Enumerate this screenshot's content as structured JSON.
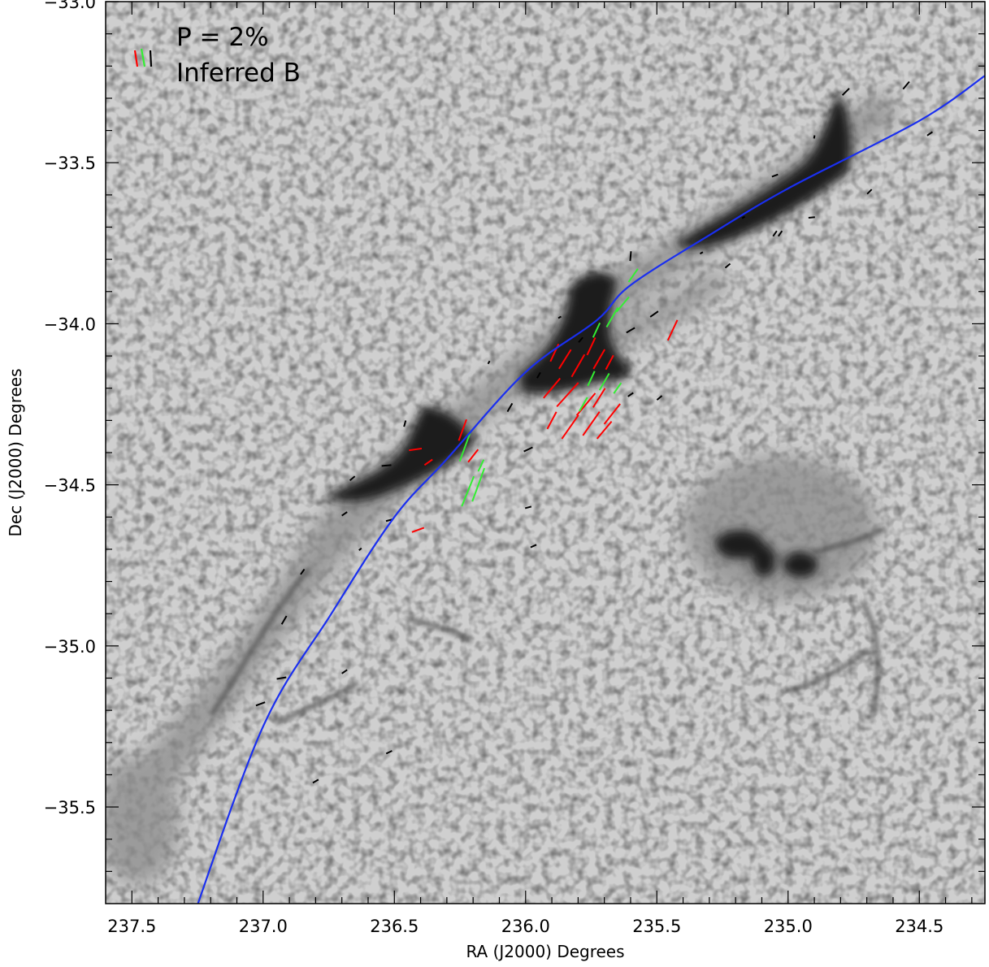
{
  "chart_data": {
    "type": "scatter",
    "title": "",
    "xlabel": "RA (J2000) Degrees",
    "ylabel": "Dec (J2000) Degrees",
    "xlim": [
      237.6,
      234.25
    ],
    "ylim": [
      -35.8,
      -33.0
    ],
    "x_reversed": true,
    "xticks": [
      237.5,
      237.0,
      236.5,
      236.0,
      235.5,
      235.0,
      234.5
    ],
    "xtick_labels": [
      "237.5",
      "237.0",
      "236.5",
      "236.0",
      "235.5",
      "235.0",
      "234.5"
    ],
    "yticks": [
      -33.0,
      -33.5,
      -34.0,
      -34.5,
      -35.0,
      -35.5
    ],
    "ytick_labels": [
      "−33.0",
      "−33.5",
      "−34.0",
      "−34.5",
      "−35.0",
      "−35.5"
    ],
    "grid": false,
    "background": "grayscale dust emission map of a filamentary molecular cloud",
    "legend": {
      "placement": "top-left",
      "scale_label": "P = 2%",
      "vector_label": "Inferred B",
      "colors": [
        "#ff0000",
        "#33ee33",
        "#000000"
      ]
    },
    "fit_curve": {
      "color": "#1a2ff0",
      "points": [
        [
          237.27,
          -35.85
        ],
        [
          237.0,
          -35.25
        ],
        [
          236.74,
          -34.9
        ],
        [
          236.5,
          -34.6
        ],
        [
          236.3,
          -34.42
        ],
        [
          236.0,
          -34.15
        ],
        [
          235.73,
          -33.99
        ],
        [
          235.6,
          -33.88
        ],
        [
          235.29,
          -33.72
        ],
        [
          235.0,
          -33.58
        ],
        [
          234.5,
          -33.37
        ],
        [
          234.25,
          -33.23
        ]
      ]
    },
    "vectors": [
      {
        "ra": 235.89,
        "dec": -34.09,
        "pa": 155,
        "len": 0.06,
        "color": "red"
      },
      {
        "ra": 235.85,
        "dec": -34.11,
        "pa": 148,
        "len": 0.07,
        "color": "red"
      },
      {
        "ra": 235.8,
        "dec": -34.13,
        "pa": 150,
        "len": 0.08,
        "color": "red"
      },
      {
        "ra": 235.75,
        "dec": -34.07,
        "pa": 155,
        "len": 0.06,
        "color": "red"
      },
      {
        "ra": 235.72,
        "dec": -34.11,
        "pa": 150,
        "len": 0.07,
        "color": "red"
      },
      {
        "ra": 235.68,
        "dec": -34.12,
        "pa": 152,
        "len": 0.05,
        "color": "red"
      },
      {
        "ra": 235.9,
        "dec": -34.2,
        "pa": 140,
        "len": 0.08,
        "color": "red"
      },
      {
        "ra": 235.84,
        "dec": -34.22,
        "pa": 138,
        "len": 0.1,
        "color": "red"
      },
      {
        "ra": 235.77,
        "dec": -34.25,
        "pa": 140,
        "len": 0.09,
        "color": "red"
      },
      {
        "ra": 235.72,
        "dec": -34.23,
        "pa": 148,
        "len": 0.07,
        "color": "red"
      },
      {
        "ra": 235.67,
        "dec": -34.28,
        "pa": 142,
        "len": 0.08,
        "color": "red"
      },
      {
        "ra": 235.9,
        "dec": -34.3,
        "pa": 152,
        "len": 0.06,
        "color": "red"
      },
      {
        "ra": 235.83,
        "dec": -34.32,
        "pa": 145,
        "len": 0.09,
        "color": "red"
      },
      {
        "ra": 235.75,
        "dec": -34.31,
        "pa": 145,
        "len": 0.09,
        "color": "red"
      },
      {
        "ra": 235.7,
        "dec": -34.33,
        "pa": 140,
        "len": 0.07,
        "color": "red"
      },
      {
        "ra": 235.44,
        "dec": -34.02,
        "pa": 155,
        "len": 0.07,
        "color": "red"
      },
      {
        "ra": 236.24,
        "dec": -34.33,
        "pa": 160,
        "len": 0.07,
        "color": "red"
      },
      {
        "ra": 236.2,
        "dec": -34.41,
        "pa": 142,
        "len": 0.05,
        "color": "red"
      },
      {
        "ra": 236.42,
        "dec": -34.39,
        "pa": 98,
        "len": 0.04,
        "color": "red"
      },
      {
        "ra": 236.37,
        "dec": -34.43,
        "pa": 125,
        "len": 0.03,
        "color": "red"
      },
      {
        "ra": 236.41,
        "dec": -34.64,
        "pa": 110,
        "len": 0.04,
        "color": "red"
      },
      {
        "ra": 235.59,
        "dec": -33.85,
        "pa": 145,
        "len": 0.05,
        "color": "green"
      },
      {
        "ra": 235.63,
        "dec": -33.94,
        "pa": 140,
        "len": 0.06,
        "color": "green"
      },
      {
        "ra": 235.67,
        "dec": -33.98,
        "pa": 150,
        "len": 0.07,
        "color": "green"
      },
      {
        "ra": 235.73,
        "dec": -34.02,
        "pa": 155,
        "len": 0.05,
        "color": "green"
      },
      {
        "ra": 235.7,
        "dec": -34.18,
        "pa": 150,
        "len": 0.06,
        "color": "green"
      },
      {
        "ra": 235.75,
        "dec": -34.17,
        "pa": 155,
        "len": 0.05,
        "color": "green"
      },
      {
        "ra": 235.78,
        "dec": -34.25,
        "pa": 150,
        "len": 0.05,
        "color": "green"
      },
      {
        "ra": 235.65,
        "dec": -34.2,
        "pa": 145,
        "len": 0.04,
        "color": "green"
      },
      {
        "ra": 236.23,
        "dec": -34.38,
        "pa": 160,
        "len": 0.1,
        "color": "green"
      },
      {
        "ra": 236.18,
        "dec": -34.5,
        "pa": 160,
        "len": 0.11,
        "color": "green"
      },
      {
        "ra": 236.22,
        "dec": -34.52,
        "pa": 158,
        "len": 0.1,
        "color": "green"
      },
      {
        "ra": 236.17,
        "dec": -34.44,
        "pa": 155,
        "len": 0.04,
        "color": "green"
      },
      {
        "ra": 235.6,
        "dec": -33.79,
        "pa": 175,
        "len": 0.03,
        "color": "black"
      },
      {
        "ra": 235.51,
        "dec": -33.97,
        "pa": 125,
        "len": 0.03,
        "color": "black"
      },
      {
        "ra": 235.6,
        "dec": -34.02,
        "pa": 120,
        "len": 0.03,
        "color": "black"
      },
      {
        "ra": 235.49,
        "dec": -34.23,
        "pa": 130,
        "len": 0.02,
        "color": "black"
      },
      {
        "ra": 235.6,
        "dec": -34.22,
        "pa": 125,
        "len": 0.02,
        "color": "black"
      },
      {
        "ra": 236.06,
        "dec": -34.26,
        "pa": 150,
        "len": 0.03,
        "color": "black"
      },
      {
        "ra": 235.99,
        "dec": -34.39,
        "pa": 115,
        "len": 0.03,
        "color": "black"
      },
      {
        "ra": 235.95,
        "dec": -34.16,
        "pa": 150,
        "len": 0.02,
        "color": "black"
      },
      {
        "ra": 235.99,
        "dec": -34.57,
        "pa": 105,
        "len": 0.02,
        "color": "black"
      },
      {
        "ra": 235.97,
        "dec": -34.69,
        "pa": 115,
        "len": 0.02,
        "color": "black"
      },
      {
        "ra": 236.53,
        "dec": -34.44,
        "pa": 95,
        "len": 0.03,
        "color": "black"
      },
      {
        "ra": 236.46,
        "dec": -34.31,
        "pa": 165,
        "len": 0.02,
        "color": "black"
      },
      {
        "ra": 236.66,
        "dec": -34.48,
        "pa": 130,
        "len": 0.02,
        "color": "black"
      },
      {
        "ra": 236.69,
        "dec": -34.59,
        "pa": 125,
        "len": 0.02,
        "color": "black"
      },
      {
        "ra": 236.52,
        "dec": -34.61,
        "pa": 105,
        "len": 0.02,
        "color": "black"
      },
      {
        "ra": 236.63,
        "dec": -34.7,
        "pa": 130,
        "len": 0.01,
        "color": "black"
      },
      {
        "ra": 236.85,
        "dec": -34.77,
        "pa": 145,
        "len": 0.02,
        "color": "black"
      },
      {
        "ra": 236.92,
        "dec": -34.92,
        "pa": 150,
        "len": 0.03,
        "color": "black"
      },
      {
        "ra": 236.93,
        "dec": -35.1,
        "pa": 100,
        "len": 0.03,
        "color": "black"
      },
      {
        "ra": 236.69,
        "dec": -35.08,
        "pa": 125,
        "len": 0.02,
        "color": "black"
      },
      {
        "ra": 237.01,
        "dec": -35.18,
        "pa": 110,
        "len": 0.03,
        "color": "black"
      },
      {
        "ra": 236.52,
        "dec": -35.33,
        "pa": 115,
        "len": 0.02,
        "color": "black"
      },
      {
        "ra": 236.8,
        "dec": -35.42,
        "pa": 120,
        "len": 0.02,
        "color": "black"
      },
      {
        "ra": 235.33,
        "dec": -33.78,
        "pa": 120,
        "len": 0.01,
        "color": "black"
      },
      {
        "ra": 235.23,
        "dec": -33.82,
        "pa": 130,
        "len": 0.02,
        "color": "black"
      },
      {
        "ra": 235.05,
        "dec": -33.72,
        "pa": 145,
        "len": 0.02,
        "color": "black"
      },
      {
        "ra": 234.91,
        "dec": -33.67,
        "pa": 95,
        "len": 0.02,
        "color": "black"
      },
      {
        "ra": 235.05,
        "dec": -33.54,
        "pa": 110,
        "len": 0.02,
        "color": "black"
      },
      {
        "ra": 234.9,
        "dec": -33.42,
        "pa": 170,
        "len": 0.01,
        "color": "black"
      },
      {
        "ra": 234.78,
        "dec": -33.28,
        "pa": 135,
        "len": 0.03,
        "color": "black"
      },
      {
        "ra": 234.55,
        "dec": -33.26,
        "pa": 140,
        "len": 0.03,
        "color": "black"
      },
      {
        "ra": 234.46,
        "dec": -33.41,
        "pa": 125,
        "len": 0.02,
        "color": "black"
      },
      {
        "ra": 234.69,
        "dec": -33.59,
        "pa": 135,
        "len": 0.02,
        "color": "black"
      },
      {
        "ra": 235.17,
        "dec": -33.67,
        "pa": 120,
        "len": 0.01,
        "color": "black"
      },
      {
        "ra": 235.03,
        "dec": -33.72,
        "pa": 145,
        "len": 0.02,
        "color": "black"
      },
      {
        "ra": 235.87,
        "dec": -33.98,
        "pa": 120,
        "len": 0.01,
        "color": "black"
      },
      {
        "ra": 235.79,
        "dec": -34.05,
        "pa": 140,
        "len": 0.02,
        "color": "black"
      },
      {
        "ra": 236.14,
        "dec": -34.12,
        "pa": 150,
        "len": 0.01,
        "color": "black"
      }
    ]
  }
}
